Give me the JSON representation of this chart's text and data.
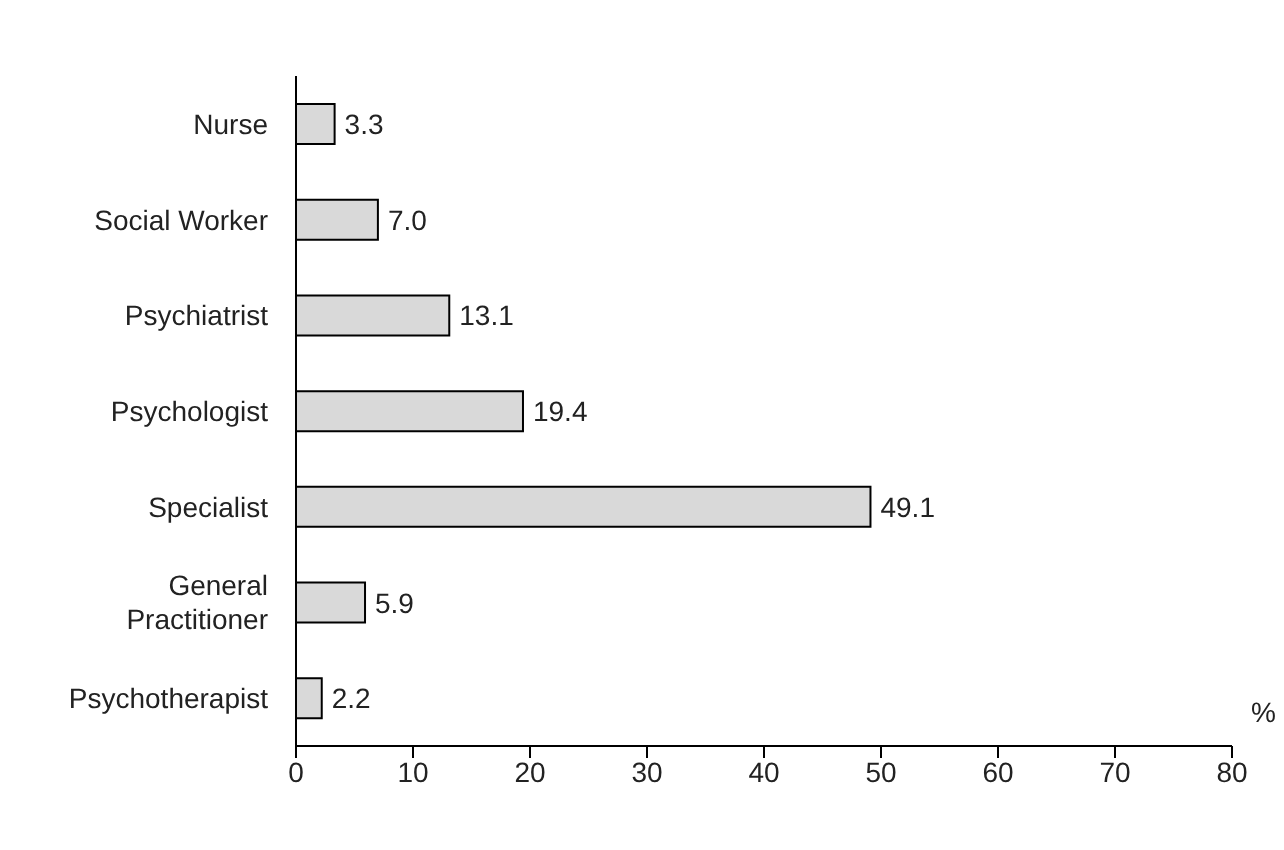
{
  "chart_data": {
    "type": "bar",
    "orientation": "horizontal",
    "xlabel": "%",
    "categories": [
      "Nurse",
      "Social Worker",
      "Psychiatrist",
      "Psychologist",
      "Specialist",
      "General Practitioner",
      "Psychotherapist"
    ],
    "values": [
      3.3,
      7.0,
      13.1,
      19.4,
      49.1,
      5.9,
      2.2
    ],
    "value_labels": [
      "3.3",
      "7.0",
      "13.1",
      "19.4",
      "49.1",
      "5.9",
      "2.2"
    ],
    "color": "#d9d9d9",
    "xlim": [
      0,
      80
    ],
    "xticks": [
      0,
      10,
      20,
      30,
      40,
      50,
      60,
      70,
      80
    ],
    "grid": false
  }
}
